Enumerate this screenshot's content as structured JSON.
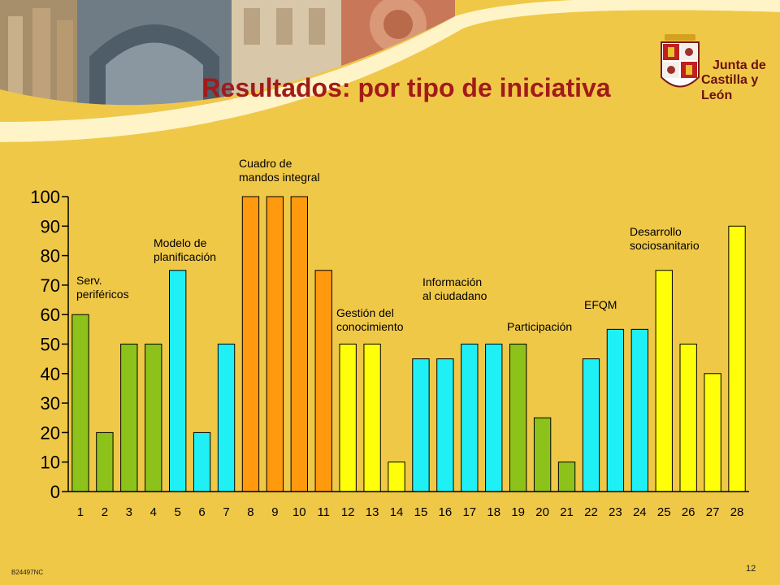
{
  "slide": {
    "title": "Resultados: por tipo de iniciativa",
    "logo_line1": "Junta de",
    "logo_line2": "Castilla y León",
    "code": "B24497NC",
    "page_number": "12"
  },
  "colors": {
    "green": "#8cc21a",
    "cyan": "#1ef0f5",
    "orange": "#ff9a0e",
    "yellow": "#ffff0a",
    "background": "#f0c848",
    "title": "#a21a1a"
  },
  "chart_data": {
    "type": "bar",
    "title": "",
    "xlabel": "",
    "ylabel": "",
    "ylim": [
      0,
      100
    ],
    "yticks": [
      0,
      10,
      20,
      30,
      40,
      50,
      60,
      70,
      80,
      90,
      100
    ],
    "grid": false,
    "categories": [
      "1",
      "2",
      "3",
      "4",
      "5",
      "6",
      "7",
      "8",
      "9",
      "10",
      "11",
      "12",
      "13",
      "14",
      "15",
      "16",
      "17",
      "18",
      "19",
      "20",
      "21",
      "22",
      "23",
      "24",
      "25",
      "26",
      "27",
      "28"
    ],
    "values": [
      60,
      20,
      50,
      50,
      75,
      20,
      50,
      100,
      100,
      100,
      75,
      50,
      50,
      10,
      45,
      45,
      50,
      50,
      50,
      25,
      10,
      45,
      55,
      55,
      75,
      50,
      40,
      90
    ],
    "bar_colors": [
      "green",
      "green",
      "green",
      "green",
      "cyan",
      "cyan",
      "cyan",
      "orange",
      "orange",
      "orange",
      "orange",
      "yellow",
      "yellow",
      "yellow",
      "cyan",
      "cyan",
      "cyan",
      "cyan",
      "green",
      "green",
      "green",
      "cyan",
      "cyan",
      "cyan",
      "yellow",
      "yellow",
      "yellow",
      "yellow"
    ],
    "annotations": [
      {
        "lines": [
          "Serv.",
          "periféricos"
        ],
        "near_bar": 1
      },
      {
        "lines": [
          "Modelo de",
          "planificación"
        ],
        "near_bar": 4
      },
      {
        "lines": [
          "Cuadro de",
          "mandos integral"
        ],
        "near_bar": 8
      },
      {
        "lines": [
          "Gestión del",
          "conocimiento"
        ],
        "near_bar": 12
      },
      {
        "lines": [
          "Información",
          "al ciudadano"
        ],
        "near_bar": 15
      },
      {
        "lines": [
          "Participación"
        ],
        "near_bar": 19
      },
      {
        "lines": [
          "EFQM"
        ],
        "near_bar": 22
      },
      {
        "lines": [
          "Desarrollo",
          "sociosanitario"
        ],
        "near_bar": 25
      }
    ]
  }
}
